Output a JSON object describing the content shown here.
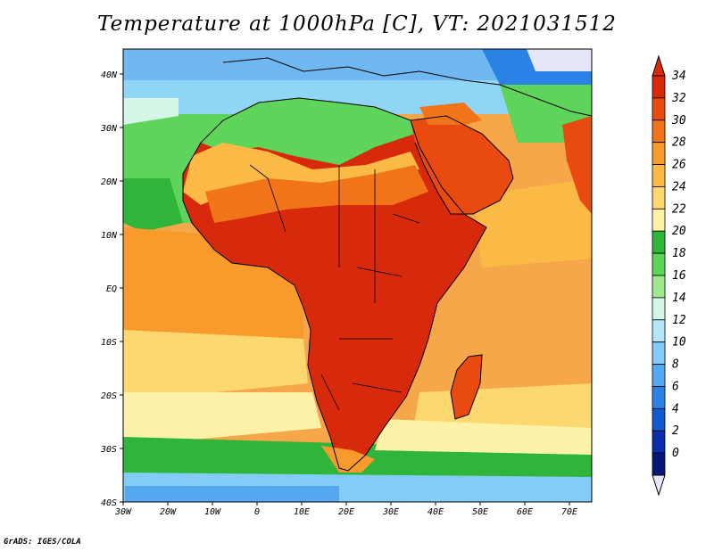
{
  "title": "Temperature at 1000hPa [C], VT: 2021031512",
  "footer": "GrADS: IGES/COLA",
  "map": {
    "lon_range": [
      -30,
      75
    ],
    "lat_range": [
      -40,
      45
    ],
    "x_ticks": [
      "30W",
      "20W",
      "10W",
      "0",
      "10E",
      "20E",
      "30E",
      "40E",
      "50E",
      "60E",
      "70E"
    ],
    "y_ticks": [
      "40N",
      "30N",
      "20N",
      "10N",
      "EQ",
      "10S",
      "20S",
      "30S",
      "40S"
    ]
  },
  "colorbar": {
    "labels": [
      "34",
      "32",
      "30",
      "28",
      "26",
      "24",
      "22",
      "20",
      "18",
      "16",
      "14",
      "12",
      "10",
      "8",
      "6",
      "4",
      "2",
      "0"
    ],
    "colors": [
      "#d72a0c",
      "#e84a10",
      "#f27418",
      "#f89a2c",
      "#fbba46",
      "#fdd870",
      "#fef2a8",
      "#2fb63a",
      "#5fd45a",
      "#9ee890",
      "#d6f7e8",
      "#b6e6fa",
      "#84ccf8",
      "#55a8f0",
      "#2c82e4",
      "#1259d0",
      "#0b2eac",
      "#081678"
    ]
  }
}
